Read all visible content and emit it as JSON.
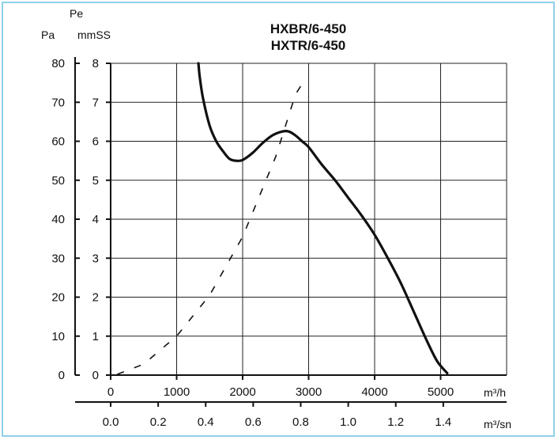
{
  "chart_data": {
    "type": "line",
    "title_lines": [
      "HXBR/6-450",
      "HXTR/6-450"
    ],
    "y_axis_header": "Pe",
    "y_units": {
      "pa": "Pa",
      "mmss": "mmSS"
    },
    "x_units": {
      "m3h": "m³/h",
      "m3sn": "m³/sn"
    },
    "x_range_m3h": [
      0,
      6000
    ],
    "y_range_mmss": [
      0,
      8
    ],
    "grid": true,
    "y_ticks_pa": [
      "0",
      "10",
      "20",
      "30",
      "40",
      "50",
      "60",
      "70",
      "80"
    ],
    "y_ticks_mmss": [
      "0",
      "1",
      "2",
      "3",
      "4",
      "5",
      "6",
      "7",
      "8"
    ],
    "x_ticks_m3h": [
      {
        "value": 0,
        "label": "0"
      },
      {
        "value": 1000,
        "label": "1000"
      },
      {
        "value": 2000,
        "label": "2000"
      },
      {
        "value": 3000,
        "label": "3000"
      },
      {
        "value": 4000,
        "label": "4000"
      },
      {
        "value": 5000,
        "label": "5000"
      }
    ],
    "x_ticks_m3sn": [
      {
        "value": 0.0,
        "label": "0.0"
      },
      {
        "value": 0.2,
        "label": "0.2"
      },
      {
        "value": 0.4,
        "label": "0.4"
      },
      {
        "value": 0.6,
        "label": "0.6"
      },
      {
        "value": 0.8,
        "label": "0.8"
      },
      {
        "value": 1.0,
        "label": "1.0"
      },
      {
        "value": 1.2,
        "label": "1.2"
      },
      {
        "value": 1.4,
        "label": "1.4"
      }
    ],
    "series": [
      {
        "style": "solid",
        "x": [
          1330,
          1350,
          1400,
          1500,
          1600,
          1700,
          1800,
          1900,
          2000,
          2150,
          2300,
          2450,
          2600,
          2700,
          2800,
          2900,
          3000,
          3200,
          3400,
          3600,
          3800,
          4000,
          4200,
          4400,
          4600,
          4800,
          4950,
          5100
        ],
        "y": [
          8.0,
          7.65,
          7.1,
          6.4,
          6.0,
          5.75,
          5.55,
          5.5,
          5.52,
          5.7,
          5.95,
          6.15,
          6.25,
          6.25,
          6.15,
          6.0,
          5.85,
          5.4,
          5.0,
          4.55,
          4.1,
          3.6,
          3.0,
          2.35,
          1.6,
          0.85,
          0.35,
          0.05
        ]
      },
      {
        "style": "dashed",
        "x": [
          100,
          500,
          1000,
          1500,
          2000,
          2500,
          2800,
          2950
        ],
        "y": [
          0.02,
          0.28,
          1.0,
          2.05,
          3.55,
          5.6,
          7.2,
          7.6
        ]
      }
    ]
  }
}
